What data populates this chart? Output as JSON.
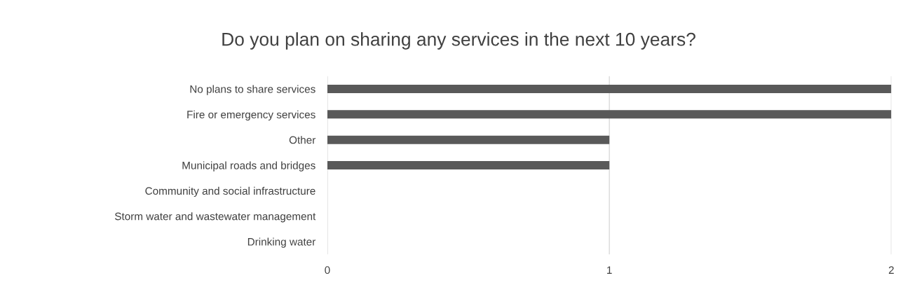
{
  "chart_data": {
    "type": "bar",
    "orientation": "horizontal",
    "title": "Do you plan on sharing any services in the next 10 years?",
    "categories": [
      "No plans to share services",
      "Fire or emergency services",
      "Other",
      "Municipal roads and bridges",
      "Community and social infrastructure",
      "Storm water and wastewater management",
      "Drinking water"
    ],
    "values": [
      2,
      2,
      1,
      1,
      0,
      0,
      0
    ],
    "color": "#595959",
    "xlim": [
      0,
      2
    ],
    "xticks": [
      0,
      1,
      2
    ],
    "grid": "x"
  }
}
